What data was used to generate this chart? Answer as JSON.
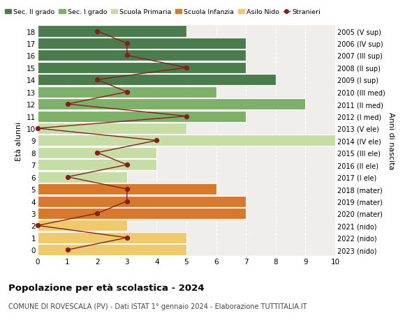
{
  "ages": [
    18,
    17,
    16,
    15,
    14,
    13,
    12,
    11,
    10,
    9,
    8,
    7,
    6,
    5,
    4,
    3,
    2,
    1,
    0
  ],
  "anni_nascita": [
    "2005 (V sup)",
    "2006 (IV sup)",
    "2007 (III sup)",
    "2008 (II sup)",
    "2009 (I sup)",
    "2010 (III med)",
    "2011 (II med)",
    "2012 (I med)",
    "2013 (V ele)",
    "2014 (IV ele)",
    "2015 (III ele)",
    "2016 (II ele)",
    "2017 (I ele)",
    "2018 (mater)",
    "2019 (mater)",
    "2020 (mater)",
    "2021 (nido)",
    "2022 (nido)",
    "2023 (nido)"
  ],
  "bar_values": [
    5,
    7,
    7,
    7,
    8,
    6,
    9,
    7,
    5,
    10,
    4,
    4,
    3,
    6,
    7,
    7,
    3,
    5,
    5
  ],
  "bar_colors": [
    "#4a7c4e",
    "#4a7c4e",
    "#4a7c4e",
    "#4a7c4e",
    "#4a7c4e",
    "#7db068",
    "#7db068",
    "#7db068",
    "#c6dea6",
    "#c6dea6",
    "#c6dea6",
    "#c6dea6",
    "#c6dea6",
    "#d9782a",
    "#d9782a",
    "#d9782a",
    "#f0c96a",
    "#f0c96a",
    "#f0c96a"
  ],
  "stranieri_values": [
    2,
    3,
    3,
    5,
    2,
    3,
    1,
    5,
    0,
    4,
    2,
    3,
    1,
    3,
    3,
    2,
    0,
    3,
    1
  ],
  "stranieri_color": "#8b1c1c",
  "title": "Popolazione per età scolastica - 2024",
  "subtitle": "COMUNE DI ROVESCALA (PV) - Dati ISTAT 1° gennaio 2024 - Elaborazione TUTTITALIA.IT",
  "ylabel_left": "Età alunni",
  "ylabel_right": "Anni di nascita",
  "xlim": [
    0,
    10
  ],
  "legend_labels": [
    "Sec. II grado",
    "Sec. I grado",
    "Scuola Primaria",
    "Scuola Infanzia",
    "Asilo Nido",
    "Stranieri"
  ],
  "legend_colors": [
    "#4a7c4e",
    "#7db068",
    "#c6dea6",
    "#d9782a",
    "#f0c96a",
    "#8b1c1c"
  ],
  "bg_color": "#ffffff",
  "plot_bg": "#f0eeea"
}
